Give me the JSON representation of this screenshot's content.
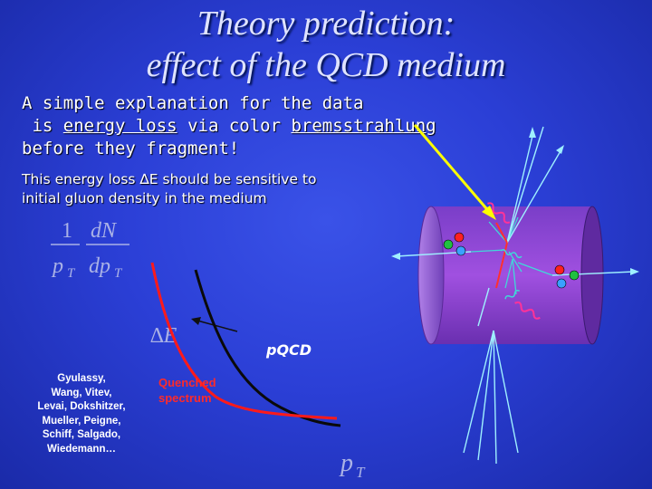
{
  "title": {
    "line1": "Theory prediction:",
    "line2": "effect of the QCD medium"
  },
  "explanation": {
    "line1": "A simple explanation for the data",
    "line2_pre": "is ",
    "line2_link1": "energy loss",
    "line2_mid": " via color ",
    "line2_link2": "bremsstrahlung",
    "line3": "before they fragment!"
  },
  "sensitivity": {
    "line1": "This energy loss ∆E should be sensitive to",
    "line2": "initial gluon density in the medium"
  },
  "formula": {
    "num1": "1",
    "num2": "dN",
    "den1": "p",
    "den1_sub": "T",
    "den2": "dp",
    "den2_sub": "T"
  },
  "labels": {
    "delta_e": "∆E",
    "pqcd": "pQCD",
    "quenched_line1": "Quenched",
    "quenched_line2": "spectrum",
    "x_axis": "p",
    "x_axis_sub": "T"
  },
  "references": [
    "Gyulassy,",
    "Wang, Vitev,",
    "Levai, Dokshitzer,",
    "Mueller, Peigne,",
    "Schiff, Salgado,",
    "Wiedemann…"
  ],
  "colors": {
    "pqcd_curve": "#0a0a0a",
    "quenched_curve": "#ff1a1a",
    "cylinder": "#8f3fd0",
    "arrow": "#ffff00",
    "gluon": "#ff3399",
    "quark_red": "#ff2020",
    "quark_green": "#20c040",
    "quark_blue": "#3aa0ff"
  }
}
